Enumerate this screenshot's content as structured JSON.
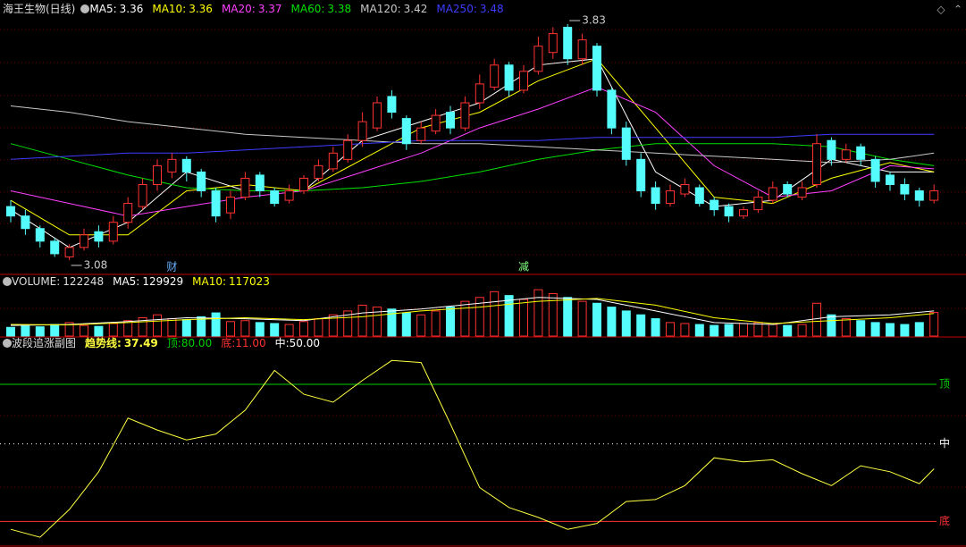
{
  "title": "海王生物(日线)",
  "chart_data": [
    {
      "type": "candlestick",
      "up_color": "#ff3232",
      "down_color": "#54fcfc",
      "ylim": [
        3.04,
        3.85
      ],
      "open": [
        3.25,
        3.22,
        3.18,
        3.14,
        3.09,
        3.12,
        3.17,
        3.14,
        3.2,
        3.25,
        3.32,
        3.36,
        3.4,
        3.36,
        3.3,
        3.23,
        3.28,
        3.35,
        3.3,
        3.27,
        3.3,
        3.34,
        3.37,
        3.4,
        3.46,
        3.5,
        3.6,
        3.53,
        3.46,
        3.49,
        3.55,
        3.5,
        3.58,
        3.63,
        3.7,
        3.62,
        3.68,
        3.74,
        3.82,
        3.72,
        3.76,
        3.62,
        3.5,
        3.4,
        3.31,
        3.26,
        3.29,
        3.31,
        3.27,
        3.25,
        3.22,
        3.24,
        3.27,
        3.32,
        3.28,
        3.32,
        3.46,
        3.4,
        3.44,
        3.4,
        3.35,
        3.32,
        3.3,
        3.27
      ],
      "high": [
        3.27,
        3.24,
        3.19,
        3.15,
        3.13,
        3.18,
        3.19,
        3.22,
        3.28,
        3.34,
        3.4,
        3.42,
        3.41,
        3.37,
        3.31,
        3.3,
        3.36,
        3.36,
        3.31,
        3.32,
        3.35,
        3.4,
        3.44,
        3.48,
        3.55,
        3.6,
        3.62,
        3.54,
        3.52,
        3.56,
        3.57,
        3.6,
        3.67,
        3.72,
        3.71,
        3.7,
        3.79,
        3.82,
        3.83,
        3.8,
        3.77,
        3.63,
        3.52,
        3.42,
        3.33,
        3.32,
        3.34,
        3.32,
        3.28,
        3.26,
        3.25,
        3.3,
        3.33,
        3.33,
        3.33,
        3.48,
        3.47,
        3.45,
        3.45,
        3.41,
        3.36,
        3.34,
        3.31,
        3.32
      ],
      "low": [
        3.2,
        3.16,
        3.12,
        3.09,
        3.08,
        3.11,
        3.12,
        3.13,
        3.18,
        3.24,
        3.3,
        3.34,
        3.33,
        3.28,
        3.2,
        3.21,
        3.27,
        3.28,
        3.25,
        3.26,
        3.29,
        3.33,
        3.36,
        3.39,
        3.44,
        3.49,
        3.53,
        3.43,
        3.45,
        3.48,
        3.48,
        3.49,
        3.56,
        3.62,
        3.6,
        3.61,
        3.67,
        3.72,
        3.7,
        3.7,
        3.6,
        3.48,
        3.38,
        3.28,
        3.24,
        3.25,
        3.28,
        3.25,
        3.22,
        3.2,
        3.21,
        3.23,
        3.26,
        3.28,
        3.27,
        3.31,
        3.38,
        3.39,
        3.38,
        3.31,
        3.3,
        3.27,
        3.25,
        3.26
      ],
      "close": [
        3.22,
        3.18,
        3.14,
        3.1,
        3.12,
        3.16,
        3.14,
        3.2,
        3.26,
        3.32,
        3.38,
        3.4,
        3.36,
        3.3,
        3.22,
        3.28,
        3.34,
        3.3,
        3.26,
        3.3,
        3.34,
        3.38,
        3.42,
        3.46,
        3.52,
        3.58,
        3.55,
        3.45,
        3.5,
        3.54,
        3.5,
        3.58,
        3.64,
        3.7,
        3.62,
        3.68,
        3.76,
        3.8,
        3.72,
        3.78,
        3.62,
        3.5,
        3.4,
        3.3,
        3.26,
        3.3,
        3.32,
        3.26,
        3.24,
        3.22,
        3.24,
        3.28,
        3.31,
        3.29,
        3.31,
        3.45,
        3.4,
        3.43,
        3.4,
        3.33,
        3.32,
        3.29,
        3.27,
        3.3
      ],
      "ma_x": [
        0,
        4,
        8,
        12,
        16,
        20,
        24,
        28,
        32,
        36,
        40,
        44,
        48,
        52,
        56,
        60,
        63
      ],
      "series": [
        {
          "label": "MA5:",
          "value": 3.36,
          "color": "#ffffff",
          "values": [
            3.24,
            3.12,
            3.2,
            3.36,
            3.3,
            3.3,
            3.46,
            3.52,
            3.58,
            3.7,
            3.72,
            3.36,
            3.25,
            3.27,
            3.4,
            3.36,
            3.36
          ]
        },
        {
          "label": "MA10:",
          "value": 3.36,
          "color": "#ffff00",
          "values": [
            3.27,
            3.16,
            3.16,
            3.3,
            3.32,
            3.3,
            3.4,
            3.5,
            3.55,
            3.65,
            3.72,
            3.5,
            3.28,
            3.26,
            3.34,
            3.39,
            3.36
          ]
        },
        {
          "label": "MA20:",
          "value": 3.37,
          "color": "#ff40ff",
          "values": [
            3.3,
            3.26,
            3.22,
            3.25,
            3.28,
            3.3,
            3.36,
            3.42,
            3.5,
            3.56,
            3.63,
            3.55,
            3.38,
            3.28,
            3.3,
            3.38,
            3.37
          ]
        },
        {
          "label": "MA60:",
          "value": 3.38,
          "color": "#00e000",
          "values": [
            3.45,
            3.4,
            3.35,
            3.31,
            3.3,
            3.3,
            3.31,
            3.33,
            3.36,
            3.4,
            3.43,
            3.45,
            3.45,
            3.45,
            3.44,
            3.4,
            3.38
          ]
        },
        {
          "label": "MA120:",
          "value": 3.42,
          "color": "#c8c8c8",
          "values": [
            3.57,
            3.55,
            3.52,
            3.5,
            3.48,
            3.47,
            3.46,
            3.45,
            3.45,
            3.44,
            3.43,
            3.42,
            3.41,
            3.4,
            3.39,
            3.4,
            3.42
          ]
        },
        {
          "label": "MA250:",
          "value": 3.48,
          "color": "#3c3cff",
          "values": [
            3.4,
            3.41,
            3.42,
            3.42,
            3.43,
            3.44,
            3.45,
            3.46,
            3.46,
            3.46,
            3.47,
            3.47,
            3.47,
            3.47,
            3.48,
            3.48,
            3.48
          ]
        }
      ],
      "annotations": [
        {
          "value": 3.83,
          "index": 38
        },
        {
          "value": 3.08,
          "index": 4
        }
      ],
      "markers": [
        {
          "text": "财",
          "index": 11,
          "color": "#6ab0ff"
        },
        {
          "text": "减",
          "index": 35,
          "color": "#80ff80"
        }
      ]
    },
    {
      "type": "volume",
      "label": "VOLUME:",
      "value": 122248,
      "ylim": [
        0,
        250000
      ],
      "values": [
        45000,
        52000,
        48000,
        60000,
        70000,
        55000,
        50000,
        65000,
        80000,
        95000,
        110000,
        90000,
        85000,
        100000,
        120000,
        75000,
        80000,
        70000,
        65000,
        60000,
        75000,
        90000,
        110000,
        130000,
        160000,
        150000,
        140000,
        120000,
        110000,
        130000,
        150000,
        180000,
        200000,
        230000,
        210000,
        190000,
        240000,
        220000,
        200000,
        180000,
        170000,
        150000,
        130000,
        110000,
        90000,
        70000,
        65000,
        60000,
        55000,
        60000,
        65000,
        70000,
        60000,
        55000,
        60000,
        170000,
        110000,
        90000,
        80000,
        70000,
        65000,
        60000,
        70000,
        122248
      ],
      "series": [
        {
          "label": "MA5:",
          "value": 129929,
          "color": "#ffffff",
          "values": [
            55000,
            60000,
            75000,
            95000,
            90000,
            80000,
            120000,
            140000,
            170000,
            200000,
            190000,
            130000,
            70000,
            60000,
            100000,
            110000,
            129929
          ]
        },
        {
          "label": "MA10:",
          "value": 117023,
          "color": "#ffff00",
          "values": [
            60000,
            58000,
            70000,
            85000,
            95000,
            85000,
            100000,
            130000,
            150000,
            180000,
            195000,
            160000,
            95000,
            65000,
            80000,
            95000,
            117023
          ]
        }
      ]
    },
    {
      "type": "line",
      "title": "波段追涨副图",
      "ylim": [
        -1,
        98
      ],
      "x": [
        0,
        2,
        4,
        6,
        8,
        10,
        12,
        14,
        16,
        18,
        20,
        22,
        24,
        26,
        28,
        30,
        32,
        34,
        36,
        38,
        40,
        42,
        44,
        46,
        48,
        50,
        52,
        54,
        56,
        58,
        60,
        62,
        63
      ],
      "series": [
        {
          "label": "趋势线:",
          "value": 37.49,
          "color": "#ffff40",
          "values": [
            7,
            3,
            17,
            36,
            63,
            57,
            52,
            55,
            67,
            87,
            75,
            71,
            82,
            92,
            91,
            60,
            28,
            18,
            13,
            7,
            10,
            21,
            22,
            29,
            43,
            41,
            42,
            35,
            29,
            39,
            36,
            30,
            37.49
          ]
        }
      ],
      "levels": [
        {
          "label": "顶:",
          "mark": "顶",
          "color": "#00d000",
          "value": {
            "value": 80,
            "label": "80.00"
          }
        },
        {
          "label": "底:",
          "mark": "底",
          "color": "#ff3232",
          "value": {
            "value": 11,
            "label": "11.00"
          }
        },
        {
          "label": "中:",
          "mark": "中",
          "color": "#ffffff",
          "value": {
            "value": 50,
            "label": "50.00"
          }
        }
      ]
    }
  ]
}
